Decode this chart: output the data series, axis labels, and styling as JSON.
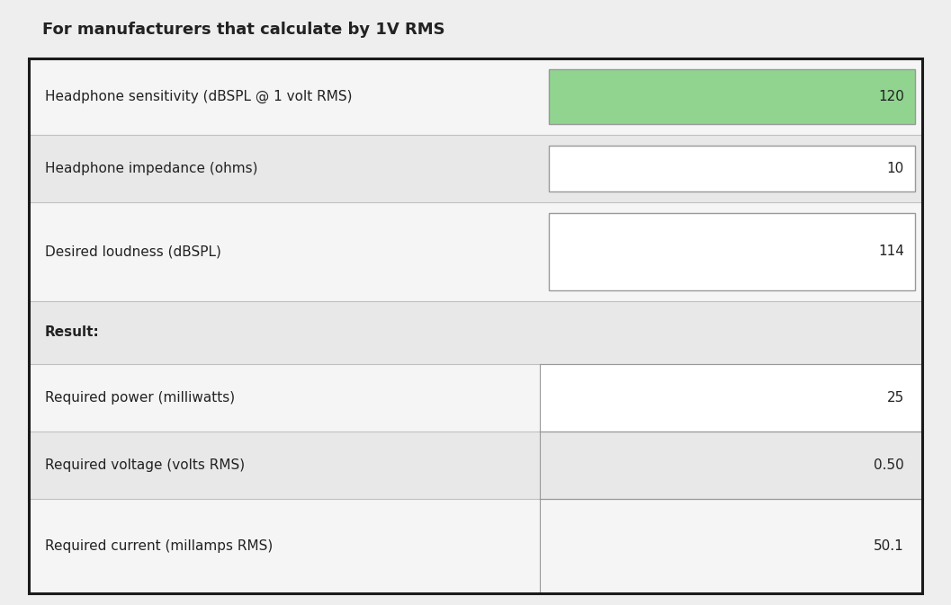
{
  "title": "For manufacturers that calculate by 1V RMS",
  "title_fontsize": 13,
  "title_font_weight": "bold",
  "text_color": "#222222",
  "outer_border_color": "#1a1a1a",
  "outer_border_lw": 2.2,
  "page_bg": "#eeeeee",
  "title_row_bg": "#eeeeee",
  "rows": [
    {
      "label": "Headphone sensitivity (dBSPL @ 1 volt RMS)",
      "value": "120",
      "input_box": true,
      "box_bg": "#90d490",
      "row_bg": "#f5f5f5",
      "is_result_header": false
    },
    {
      "label": "Headphone impedance (ohms)",
      "value": "10",
      "input_box": true,
      "box_bg": "#ffffff",
      "row_bg": "#e8e8e8",
      "is_result_header": false
    },
    {
      "label": "Desired loudness (dBSPL)",
      "value": "114",
      "input_box": true,
      "box_bg": "#ffffff",
      "row_bg": "#f5f5f5",
      "is_result_header": false
    },
    {
      "label": "Result:",
      "value": "",
      "input_box": false,
      "box_bg": null,
      "row_bg": "#e8e8e8",
      "is_result_header": true
    },
    {
      "label": "Required power (milliwatts)",
      "value": "25",
      "input_box": false,
      "box_bg": "#ffffff",
      "row_bg": "#f5f5f5",
      "is_result_header": false
    },
    {
      "label": "Required voltage (volts RMS)",
      "value": "0.50",
      "input_box": false,
      "box_bg": "#e8e8e8",
      "row_bg": "#e8e8e8",
      "is_result_header": false
    },
    {
      "label": "Required current (millamps RMS)",
      "value": "50.1",
      "input_box": false,
      "box_bg": "#f5f5f5",
      "row_bg": "#f5f5f5",
      "is_result_header": false
    }
  ],
  "fig_width": 10.57,
  "fig_height": 6.73,
  "dpi": 100
}
